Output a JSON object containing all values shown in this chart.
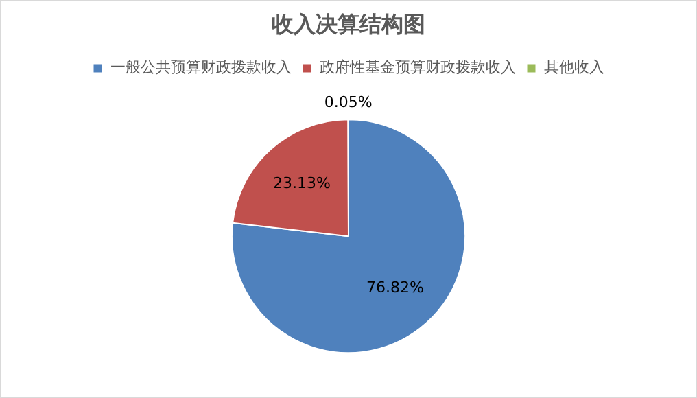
{
  "chart_data": {
    "type": "pie",
    "title": "收入决算结构图",
    "categories": [
      "一般公共预算财政拨款收入",
      "政府性基金预算财政拨款收入",
      "其他收入"
    ],
    "values": [
      76.82,
      23.13,
      0.05
    ],
    "colors": [
      "#4f81bd",
      "#c0504d",
      "#9bbb59"
    ],
    "value_labels": [
      "76.82%",
      "23.13%",
      "0.05%"
    ],
    "legend": "top"
  }
}
